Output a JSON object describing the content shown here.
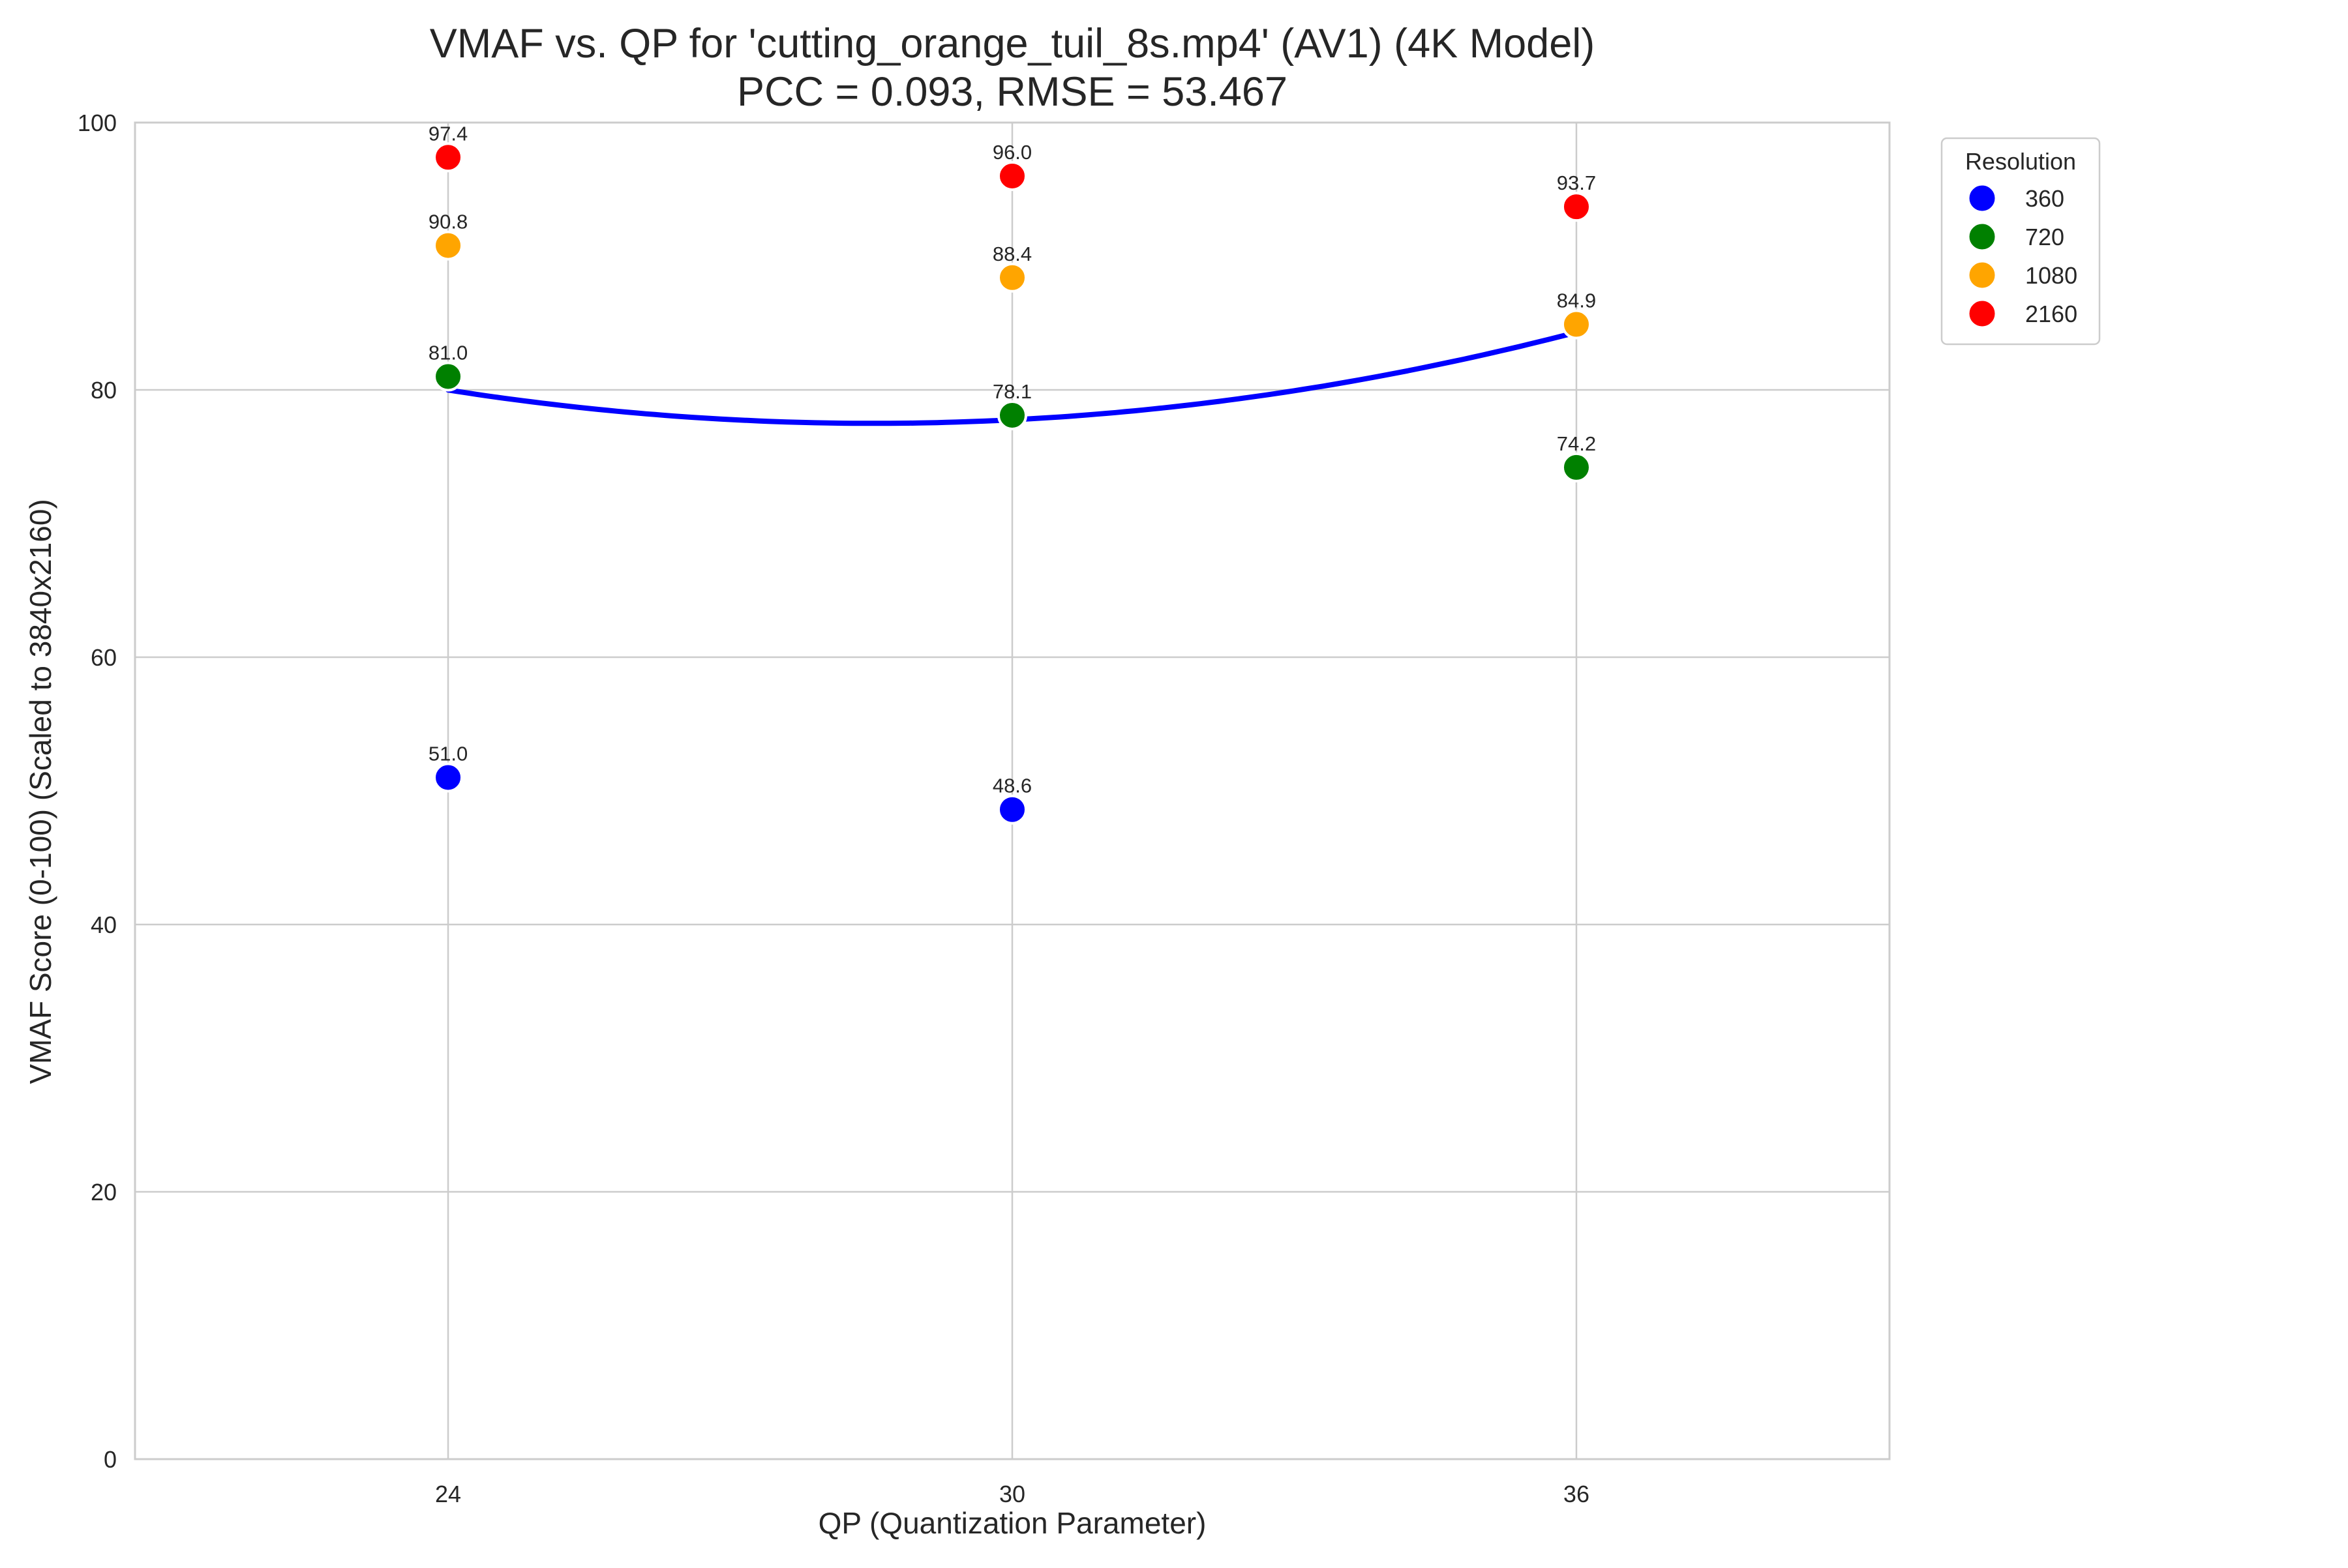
{
  "chart_data": {
    "type": "scatter",
    "title": "VMAF vs. QP for 'cutting_orange_tuil_8s.mp4' (AV1) (4K Model)",
    "subtitle": "PCC = 0.093, RMSE = 53.467",
    "xlabel": "QP (Quantization Parameter)",
    "ylabel": "VMAF Score (0-100) (Scaled to 3840x2160)",
    "xlim": [
      20.67,
      39.33
    ],
    "ylim": [
      0,
      100
    ],
    "x_ticks": [
      24,
      30,
      36
    ],
    "x_tick_labels": [
      "24",
      "30",
      "36"
    ],
    "y_ticks": [
      0,
      20,
      40,
      60,
      80,
      100
    ],
    "y_tick_labels": [
      "0",
      "20",
      "40",
      "60",
      "80",
      "100"
    ],
    "grid": true,
    "legend": {
      "title": "Resolution",
      "position": "outside-top-right"
    },
    "series": [
      {
        "name": "360",
        "color": "#0000ff",
        "points": [
          {
            "x": 24,
            "y": 51.0,
            "label": "51.0"
          },
          {
            "x": 30,
            "y": 48.6,
            "label": "48.6"
          }
        ]
      },
      {
        "name": "720",
        "color": "#008000",
        "points": [
          {
            "x": 24,
            "y": 81.0,
            "label": "81.0"
          },
          {
            "x": 30,
            "y": 78.1,
            "label": "78.1"
          },
          {
            "x": 36,
            "y": 74.2,
            "label": "74.2"
          }
        ]
      },
      {
        "name": "1080",
        "color": "#ffa500",
        "points": [
          {
            "x": 24,
            "y": 90.8,
            "label": "90.8"
          },
          {
            "x": 30,
            "y": 88.4,
            "label": "88.4"
          },
          {
            "x": 36,
            "y": 84.9,
            "label": "84.9"
          }
        ]
      },
      {
        "name": "2160",
        "color": "#ff0000",
        "points": [
          {
            "x": 24,
            "y": 97.4,
            "label": "97.4"
          },
          {
            "x": 30,
            "y": 96.0,
            "label": "96.0"
          },
          {
            "x": 36,
            "y": 93.7,
            "label": "93.7"
          }
        ]
      }
    ],
    "trend_line": {
      "color": "#0000ff",
      "x_range": [
        24,
        36
      ],
      "points": [
        {
          "x": 24,
          "y": 80.0
        },
        {
          "x": 27.9,
          "y": 77.5
        },
        {
          "x": 30,
          "y": 77.8
        },
        {
          "x": 36,
          "y": 84.3
        }
      ]
    }
  }
}
